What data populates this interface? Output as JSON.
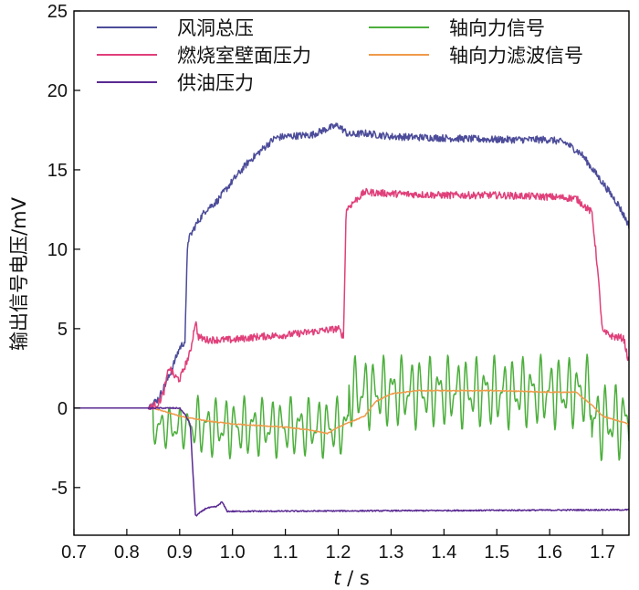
{
  "chart_data": {
    "type": "line",
    "xlabel": {
      "var": "t",
      "unit": " / s"
    },
    "ylabel": "输出信号电压/mV",
    "xlim": [
      0.7,
      1.75
    ],
    "ylim": [
      -8,
      25
    ],
    "xticks": [
      "0.7",
      "0.8",
      "0.9",
      "1.0",
      "1.1",
      "1.2",
      "1.3",
      "1.4",
      "1.5",
      "1.6",
      "1.7"
    ],
    "yticks": [
      "-5",
      "0",
      "5",
      "10",
      "15",
      "20",
      "25"
    ],
    "grid": false,
    "legend_position": "top",
    "series": [
      {
        "name": "风洞总压",
        "color": "#4c4c9a",
        "noise": 0.15,
        "points": [
          [
            0.7,
            0
          ],
          [
            0.84,
            0
          ],
          [
            0.86,
            0.6
          ],
          [
            0.88,
            2
          ],
          [
            0.9,
            3.8
          ],
          [
            0.91,
            4.2
          ],
          [
            0.915,
            10.5
          ],
          [
            0.93,
            11.5
          ],
          [
            0.95,
            12.5
          ],
          [
            0.97,
            13
          ],
          [
            1.0,
            14.3
          ],
          [
            1.03,
            15.5
          ],
          [
            1.06,
            16.4
          ],
          [
            1.08,
            17.0
          ],
          [
            1.1,
            17.1
          ],
          [
            1.15,
            17.2
          ],
          [
            1.18,
            17.6
          ],
          [
            1.2,
            17.8
          ],
          [
            1.22,
            17.2
          ],
          [
            1.25,
            17.3
          ],
          [
            1.3,
            17.1
          ],
          [
            1.4,
            17.0
          ],
          [
            1.5,
            16.9
          ],
          [
            1.6,
            16.9
          ],
          [
            1.63,
            16.7
          ],
          [
            1.66,
            16.0
          ],
          [
            1.7,
            14.2
          ],
          [
            1.73,
            12.8
          ],
          [
            1.75,
            11.5
          ]
        ]
      },
      {
        "name": "燃烧室壁面压力",
        "color": "#e0407a",
        "noise": 0.15,
        "points": [
          [
            0.7,
            0
          ],
          [
            0.84,
            0
          ],
          [
            0.86,
            0.3
          ],
          [
            0.87,
            1.0
          ],
          [
            0.88,
            2.6
          ],
          [
            0.89,
            2.0
          ],
          [
            0.9,
            1.8
          ],
          [
            0.92,
            3.5
          ],
          [
            0.93,
            5.5
          ],
          [
            0.935,
            4.5
          ],
          [
            0.95,
            4.3
          ],
          [
            1.0,
            4.3
          ],
          [
            1.05,
            4.5
          ],
          [
            1.1,
            4.6
          ],
          [
            1.15,
            4.8
          ],
          [
            1.2,
            5.0
          ],
          [
            1.21,
            4.5
          ],
          [
            1.215,
            12.5
          ],
          [
            1.23,
            13.0
          ],
          [
            1.25,
            13.6
          ],
          [
            1.3,
            13.5
          ],
          [
            1.4,
            13.4
          ],
          [
            1.5,
            13.4
          ],
          [
            1.6,
            13.3
          ],
          [
            1.65,
            13.2
          ],
          [
            1.68,
            12.3
          ],
          [
            1.69,
            9
          ],
          [
            1.7,
            4.8
          ],
          [
            1.72,
            4.5
          ],
          [
            1.74,
            4.4
          ],
          [
            1.75,
            2.8
          ]
        ]
      },
      {
        "name": "供油压力",
        "color": "#5a2a92",
        "noise": 0.04,
        "points": [
          [
            0.7,
            0
          ],
          [
            0.9,
            0
          ],
          [
            0.91,
            -0.4
          ],
          [
            0.92,
            -1
          ],
          [
            0.925,
            -4
          ],
          [
            0.93,
            -6.8
          ],
          [
            0.95,
            -6.3
          ],
          [
            0.97,
            -6.2
          ],
          [
            0.98,
            -5.9
          ],
          [
            0.99,
            -6.5
          ],
          [
            1.0,
            -6.5
          ],
          [
            1.75,
            -6.4
          ]
        ]
      },
      {
        "name": "轴向力信号",
        "color": "#4caf3c",
        "noise": 0,
        "points": []
      },
      {
        "name": "轴向力滤波信号",
        "color": "#f09a4a",
        "noise": 0.03,
        "points": [
          [
            0.7,
            0
          ],
          [
            0.85,
            0
          ],
          [
            0.9,
            -0.5
          ],
          [
            0.95,
            -0.8
          ],
          [
            1.0,
            -1.0
          ],
          [
            1.05,
            -1.1
          ],
          [
            1.1,
            -1.2
          ],
          [
            1.15,
            -1.4
          ],
          [
            1.18,
            -1.6
          ],
          [
            1.2,
            -1.2
          ],
          [
            1.25,
            -0.5
          ],
          [
            1.27,
            0.4
          ],
          [
            1.3,
            0.9
          ],
          [
            1.35,
            1.1
          ],
          [
            1.4,
            1.1
          ],
          [
            1.5,
            1.1
          ],
          [
            1.6,
            1.0
          ],
          [
            1.65,
            1.0
          ],
          [
            1.68,
            0.2
          ],
          [
            1.7,
            -0.5
          ],
          [
            1.75,
            -1.0
          ]
        ]
      }
    ]
  }
}
